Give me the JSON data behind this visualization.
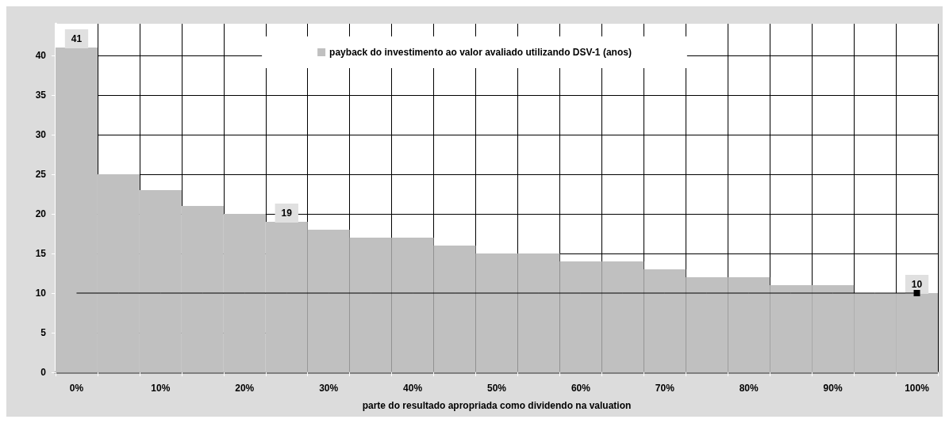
{
  "chart_data": {
    "type": "bar",
    "xlabel": "parte do resultado apropriada como dividendo na valuation",
    "categories": [
      "0%",
      null,
      "10%",
      null,
      "20%",
      null,
      "30%",
      null,
      "40%",
      null,
      "50%",
      null,
      "60%",
      null,
      "70%",
      null,
      "80%",
      null,
      "90%",
      null,
      "100%"
    ],
    "series": [
      {
        "name": "payback do investimento ao valor avaliado utilizando DSV-1 (anos)",
        "color": "#c0c0c0",
        "values": [
          41,
          25,
          23,
          21,
          20,
          19,
          18,
          17,
          17,
          16,
          15,
          15,
          14,
          14,
          13,
          12,
          12,
          11,
          11,
          10,
          10
        ],
        "value_labels": [
          "41",
          null,
          null,
          null,
          null,
          "19",
          null,
          null,
          null,
          null,
          null,
          null,
          null,
          null,
          null,
          null,
          null,
          null,
          null,
          null,
          "10"
        ]
      },
      {
        "type": "line",
        "color": "#000000",
        "values": [
          10,
          10,
          10,
          10,
          10,
          10,
          10,
          10,
          10,
          10,
          10,
          10,
          10,
          10,
          10,
          10,
          10,
          10,
          10,
          10,
          10
        ]
      }
    ],
    "ylim": [
      0,
      44
    ],
    "yticks": [
      0,
      5,
      10,
      15,
      20,
      25,
      30,
      35,
      40
    ],
    "grid": true,
    "legend": "top"
  }
}
